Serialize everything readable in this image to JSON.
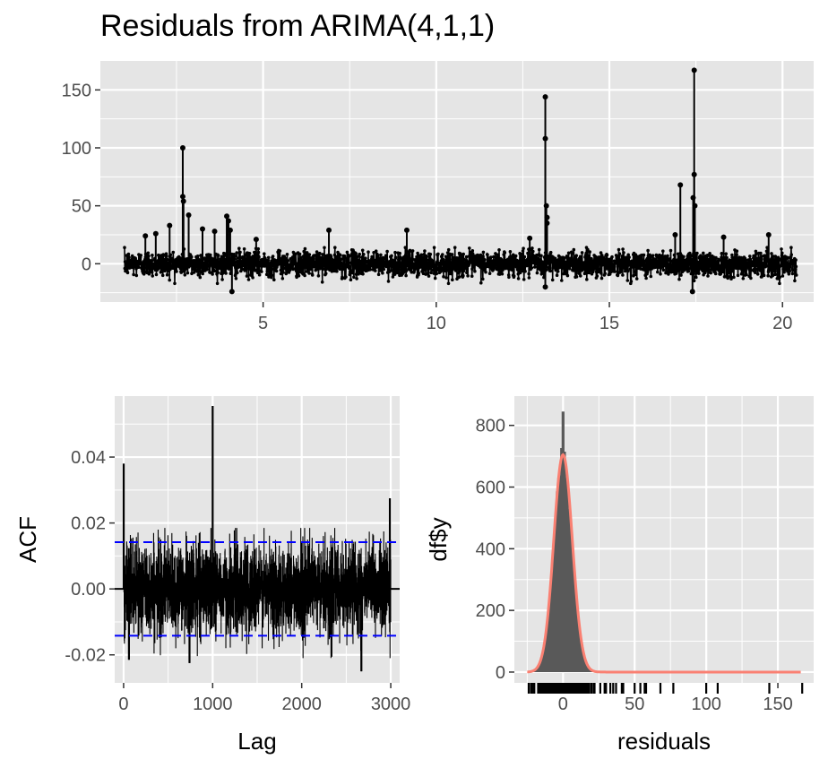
{
  "title": "Residuals from ARIMA(4,1,1)",
  "colors": {
    "panel": "#e5e5e5",
    "grid": "#ffffff",
    "ink": "#000000",
    "acf_bounds": "#0000ff",
    "hist_fill": "#595959",
    "density": "#fa8072"
  },
  "chart_data": [
    {
      "type": "line",
      "name": "residual-series",
      "title": "Residuals from ARIMA(4,1,1)",
      "xlabel": "",
      "ylabel": "",
      "xlim": [
        0.3,
        20.9
      ],
      "ylim": [
        -33,
        175
      ],
      "xticks": [
        5,
        10,
        15,
        20
      ],
      "yticks": [
        0,
        50,
        100,
        150
      ],
      "grid": true,
      "x_range": [
        1,
        20.4
      ],
      "noise_band": [
        -17,
        14
      ],
      "spikes": [
        {
          "x": 1.6,
          "y": 24
        },
        {
          "x": 1.9,
          "y": 26
        },
        {
          "x": 2.3,
          "y": 33
        },
        {
          "x": 2.68,
          "y": 100
        },
        {
          "x": 2.68,
          "y": 58
        },
        {
          "x": 2.7,
          "y": 54
        },
        {
          "x": 2.85,
          "y": 42
        },
        {
          "x": 3.25,
          "y": 30
        },
        {
          "x": 3.6,
          "y": 28
        },
        {
          "x": 3.95,
          "y": 41
        },
        {
          "x": 4.0,
          "y": 37
        },
        {
          "x": 4.05,
          "y": 29
        },
        {
          "x": 4.1,
          "y": -24
        },
        {
          "x": 4.8,
          "y": 21
        },
        {
          "x": 6.9,
          "y": 29
        },
        {
          "x": 9.15,
          "y": 29
        },
        {
          "x": 12.7,
          "y": 22
        },
        {
          "x": 13.15,
          "y": 144
        },
        {
          "x": 13.15,
          "y": 108
        },
        {
          "x": 13.18,
          "y": 50
        },
        {
          "x": 13.2,
          "y": 40
        },
        {
          "x": 13.2,
          "y": 35
        },
        {
          "x": 13.15,
          "y": -20
        },
        {
          "x": 17.05,
          "y": 68
        },
        {
          "x": 16.9,
          "y": 25
        },
        {
          "x": 17.45,
          "y": 167
        },
        {
          "x": 17.45,
          "y": 77
        },
        {
          "x": 17.42,
          "y": 57
        },
        {
          "x": 17.47,
          "y": 50
        },
        {
          "x": 17.4,
          "y": -24
        },
        {
          "x": 18.3,
          "y": 23
        },
        {
          "x": 19.6,
          "y": 25
        }
      ]
    },
    {
      "type": "bar",
      "name": "acf",
      "xlabel": "Lag",
      "ylabel": "ACF",
      "xlim": [
        -100,
        3100
      ],
      "ylim": [
        -0.0285,
        0.0585
      ],
      "xticks": [
        0,
        1000,
        2000,
        3000
      ],
      "yticks": [
        -0.02,
        0.0,
        0.02,
        0.04
      ],
      "ytick_labels": [
        "-0.02",
        "0.00",
        "0.02",
        "0.04"
      ],
      "grid": true,
      "lag_max": 3000,
      "confidence_bound": 0.0142,
      "notable_lags": [
        {
          "lag": 1,
          "acf": 0.038
        },
        {
          "lag": 1000,
          "acf": 0.0555
        },
        {
          "lag": 2990,
          "acf": 0.0275
        },
        {
          "lag": 2670,
          "acf": -0.025
        },
        {
          "lag": 60,
          "acf": -0.0215
        },
        {
          "lag": 740,
          "acf": -0.0225
        }
      ]
    },
    {
      "type": "bar",
      "name": "histogram",
      "xlabel": "residuals",
      "ylabel": "df$y",
      "xlim": [
        -34,
        175
      ],
      "ylim": [
        -35,
        895
      ],
      "xticks": [
        0,
        50,
        100,
        150
      ],
      "yticks": [
        0,
        200,
        400,
        600,
        800
      ],
      "grid": true,
      "bin_width": 1,
      "peak_count": 845,
      "normal_density": {
        "mean": 0,
        "sd": 6.5,
        "peak": 705
      },
      "rug_outliers": [
        26,
        29,
        30,
        33,
        35,
        37,
        41,
        42,
        50,
        54,
        57,
        58,
        68,
        77,
        100,
        108,
        144,
        167
      ]
    }
  ]
}
